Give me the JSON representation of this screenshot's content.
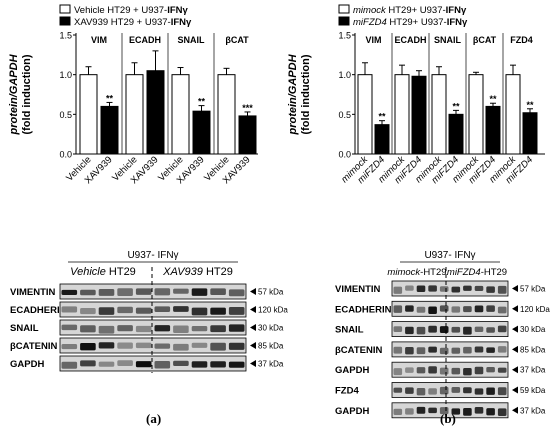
{
  "chart_data": [
    {
      "type": "bar",
      "panel": "a",
      "ylabel_line1": "protein/GAPDH",
      "ylabel_line2": "(fold induction)",
      "ylim": [
        0,
        1.5
      ],
      "yticks": [
        "0.0",
        "0.5",
        "1.0",
        "1.5"
      ],
      "legend_placement": "top-left",
      "series": [
        {
          "name": "Vehicle HT29 + U937-IFNγ",
          "name_parts": [
            "Vehicle HT29 + U937-",
            "IFNγ"
          ],
          "fill": "#ffffff"
        },
        {
          "name": "XAV939 HT29 + U937-IFNγ",
          "name_parts": [
            "XAV939 HT29 + U937-",
            "IFNγ"
          ],
          "fill": "#000000"
        }
      ],
      "groups": [
        {
          "label": "VIM",
          "categories": [
            "Vehicle",
            "XAV939"
          ],
          "values": [
            1.0,
            0.6
          ],
          "errors": [
            0.1,
            0.05
          ],
          "sig": [
            "",
            "**"
          ]
        },
        {
          "label": "ECADH",
          "categories": [
            "Vehicle",
            "XAV939"
          ],
          "values": [
            1.0,
            1.05
          ],
          "errors": [
            0.15,
            0.25
          ],
          "sig": [
            "",
            ""
          ]
        },
        {
          "label": "SNAIL",
          "categories": [
            "Vehicle",
            "XAV939"
          ],
          "values": [
            1.0,
            0.54
          ],
          "errors": [
            0.09,
            0.07
          ],
          "sig": [
            "",
            "**"
          ]
        },
        {
          "label": "βCAT",
          "categories": [
            "Vehicle",
            "XAV939"
          ],
          "values": [
            1.0,
            0.48
          ],
          "errors": [
            0.08,
            0.05
          ],
          "sig": [
            "",
            "***"
          ]
        }
      ]
    },
    {
      "type": "bar",
      "panel": "b",
      "ylabel_line1": "protein/GAPDH",
      "ylabel_line2": "(fold induction)",
      "ylim": [
        0,
        1.5
      ],
      "yticks": [
        "0.0",
        "0.5",
        "1.0",
        "1.5"
      ],
      "legend_placement": "top-left",
      "series": [
        {
          "name": "mimock HT29+ U937-IFNγ",
          "name_parts": [
            "mimock",
            " HT29+ U937-",
            "IFNγ"
          ],
          "fill": "#ffffff"
        },
        {
          "name": "miFZD4 HT29+ U937-IFNγ",
          "name_parts": [
            "miFZD4",
            " HT29+ U937-",
            "IFNγ"
          ],
          "fill": "#000000"
        }
      ],
      "groups": [
        {
          "label": "VIM",
          "categories": [
            "mimock",
            "miFZD4"
          ],
          "values": [
            1.0,
            0.37
          ],
          "errors": [
            0.15,
            0.05
          ],
          "sig": [
            "",
            "**"
          ]
        },
        {
          "label": "ECADH",
          "categories": [
            "mimock",
            "miFZD4"
          ],
          "values": [
            1.0,
            0.98
          ],
          "errors": [
            0.12,
            0.07
          ],
          "sig": [
            "",
            ""
          ]
        },
        {
          "label": "SNAIL",
          "categories": [
            "mimock",
            "miFZD4"
          ],
          "values": [
            1.0,
            0.5
          ],
          "errors": [
            0.1,
            0.05
          ],
          "sig": [
            "",
            "**"
          ]
        },
        {
          "label": "βCAT",
          "categories": [
            "mimock",
            "miFZD4"
          ],
          "values": [
            1.0,
            0.6
          ],
          "errors": [
            0.03,
            0.04
          ],
          "sig": [
            "",
            "**"
          ]
        },
        {
          "label": "FZD4",
          "categories": [
            "mimock",
            "miFZD4"
          ],
          "values": [
            1.0,
            0.52
          ],
          "errors": [
            0.12,
            0.05
          ],
          "sig": [
            "",
            "**"
          ]
        }
      ]
    }
  ],
  "blots": [
    {
      "panel": "a",
      "title": "U937- IFNγ",
      "group_left": {
        "italic": "Vehicle",
        "rest": " HT29"
      },
      "group_right": {
        "italic": "XAV939",
        "rest": " HT29"
      },
      "rows": [
        {
          "protein": "VIMENTIN",
          "kda": "57 kDa"
        },
        {
          "protein": "ECADHERIN",
          "kda": "120 kDa"
        },
        {
          "protein": "SNAIL",
          "kda": "30 kDa"
        },
        {
          "protein": "βCATENIN",
          "kda": "85 kDa"
        },
        {
          "protein": "GAPDH",
          "kda": "37 kDa"
        }
      ]
    },
    {
      "panel": "b",
      "title": "U937- IFNγ",
      "group_left": {
        "italic": "mimock",
        "rest": "-HT29"
      },
      "group_right": {
        "italic": "miFZD4",
        "rest": "-HT29"
      },
      "rows": [
        {
          "protein": "VIMENTIN",
          "kda": "57 kDa"
        },
        {
          "protein": "ECADHERIN",
          "kda": "120 kDa"
        },
        {
          "protein": "SNAIL",
          "kda": "30 kDa"
        },
        {
          "protein": "βCATENIN",
          "kda": "85 kDa"
        },
        {
          "protein": "GAPDH",
          "kda": "37 kDa"
        },
        {
          "protein": "FZD4",
          "kda": "59 kDa"
        },
        {
          "protein": "GAPDH",
          "kda": "37 kDa"
        }
      ]
    }
  ],
  "panel_labels": {
    "a": "(a)",
    "b": "(b)"
  }
}
